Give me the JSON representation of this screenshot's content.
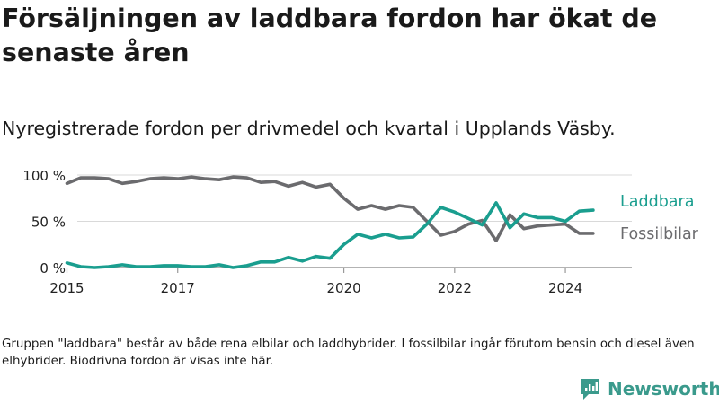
{
  "title": "Försäljningen av laddbara fordon har ökat de senaste åren",
  "subtitle": "Nyregistrerade fordon per drivmedel och kvartal i Upplands Väsby.",
  "note": "Gruppen \"laddbara\" består av både rena elbilar och laddhybrider. I fossilbilar ingår förutom bensin och diesel även elhybrider. Biodrivna fordon är visas inte här.",
  "brand": {
    "name": "Newsworthy",
    "icon": "newsworthy-logo-icon",
    "color": "#3a9a8c"
  },
  "chart_data": {
    "type": "line",
    "title": "Nyregistrerade fordon per drivmedel och kvartal i Upplands Väsby.",
    "xlabel": "",
    "ylabel": "",
    "x_start": 2015.0,
    "x_step": 0.25,
    "xlim": [
      2014.7,
      2025.2
    ],
    "ylim": [
      0,
      100
    ],
    "x_ticks": [
      2015,
      2017,
      2020,
      2022,
      2024
    ],
    "x_tick_labels": [
      "2015",
      "2017",
      "2020",
      "2022",
      "2024"
    ],
    "y_ticks": [
      0,
      50,
      100
    ],
    "y_tick_labels": [
      "0 %",
      "50 %",
      "100 %"
    ],
    "grid": true,
    "series": [
      {
        "name": "Laddbara",
        "color": "#1a9e8f",
        "values": [
          5,
          1,
          0,
          1,
          3,
          1,
          1,
          2,
          2,
          1,
          1,
          3,
          0,
          2,
          6,
          6,
          11,
          7,
          12,
          10,
          25,
          36,
          32,
          36,
          32,
          33,
          47,
          65,
          60,
          53,
          46,
          70,
          43,
          58,
          54,
          54,
          50,
          61,
          62
        ]
      },
      {
        "name": "Fossilbilar",
        "color": "#6b6b6e",
        "values": [
          91,
          97,
          97,
          96,
          91,
          93,
          96,
          97,
          96,
          98,
          96,
          95,
          98,
          97,
          92,
          93,
          88,
          92,
          87,
          90,
          75,
          63,
          67,
          63,
          67,
          65,
          50,
          35,
          39,
          47,
          51,
          29,
          57,
          42,
          45,
          46,
          47,
          37,
          37
        ]
      }
    ]
  }
}
